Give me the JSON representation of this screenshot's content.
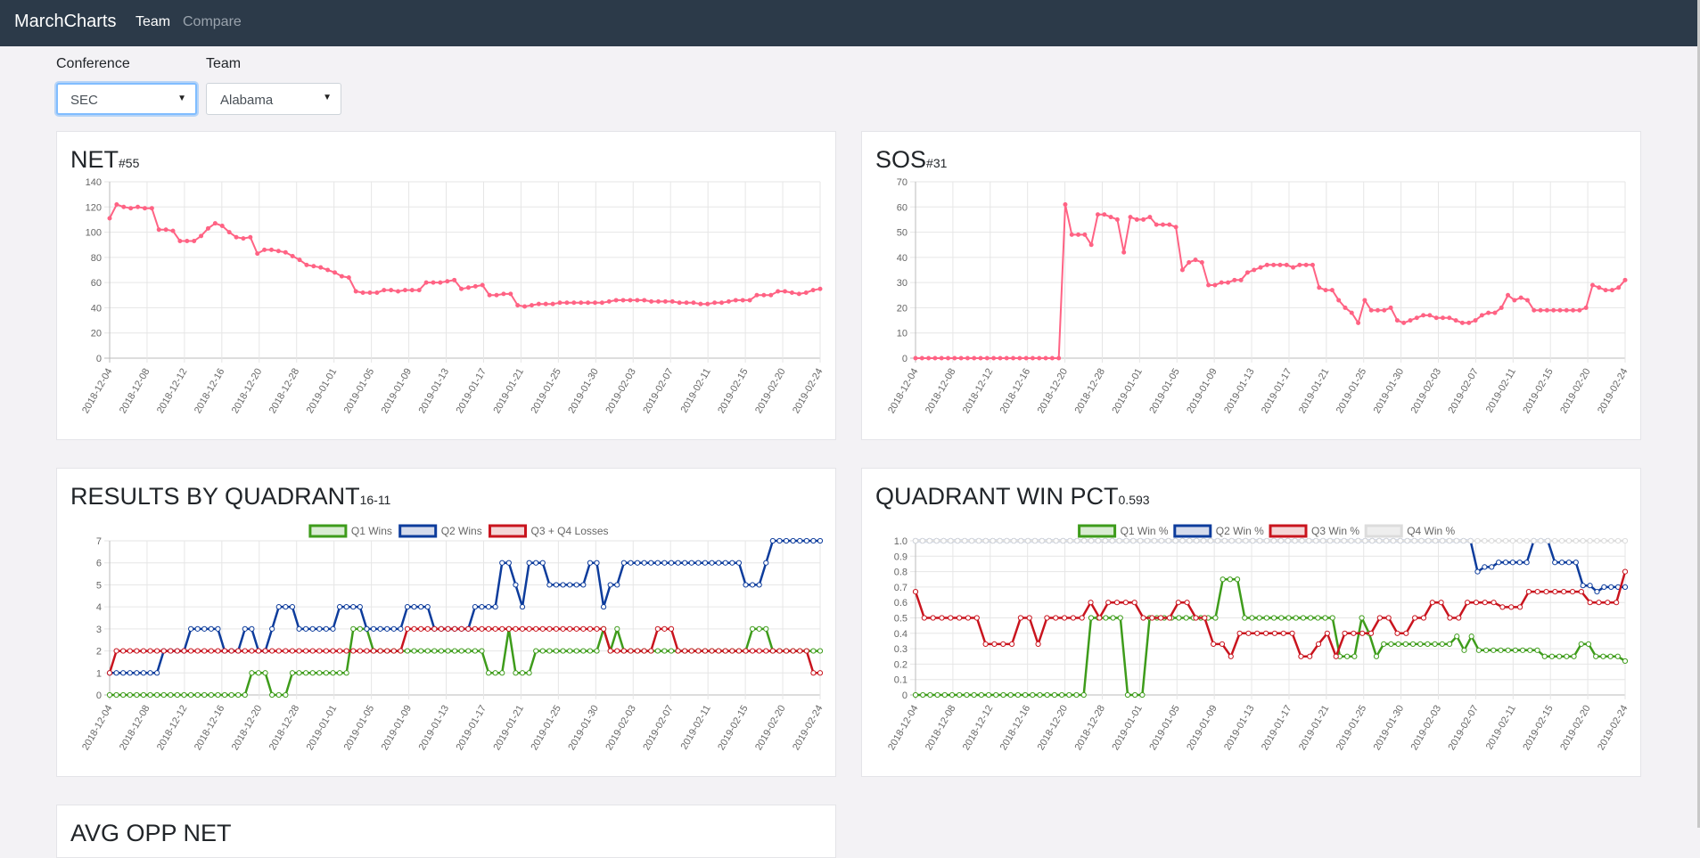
{
  "nav": {
    "brand": "MarchCharts",
    "links": [
      "Team",
      "Compare"
    ]
  },
  "filters": {
    "conference_label": "Conference",
    "conference_value": "SEC",
    "team_label": "Team",
    "team_value": "Alabama"
  },
  "next_card_title": "AVG OPP NET",
  "dates": [
    "2018-12-04",
    "2018-12-08",
    "2018-12-12",
    "2018-12-16",
    "2018-12-20",
    "2018-12-28",
    "2019-01-01",
    "2019-01-05",
    "2019-01-09",
    "2019-01-13",
    "2019-01-17",
    "2019-01-21",
    "2019-01-25",
    "2019-01-30",
    "2019-02-03",
    "2019-02-07",
    "2019-02-11",
    "2019-02-15",
    "2019-02-20",
    "2019-02-24"
  ],
  "chart_data": [
    {
      "id": "net",
      "type": "line",
      "title": "NET",
      "subtitle": "#55",
      "ylim": [
        0,
        140
      ],
      "yticks": [
        0,
        20,
        40,
        60,
        80,
        100,
        120,
        140
      ],
      "color": "#ff6384",
      "point_fill": "#ff6384",
      "series": [
        {
          "values": [
            111,
            122,
            120,
            119,
            120,
            119,
            119,
            102,
            102,
            101,
            93,
            93,
            93,
            97,
            103,
            107,
            105,
            100,
            96,
            95,
            96,
            83,
            86,
            86,
            85,
            84,
            81,
            78,
            74,
            73,
            72,
            70,
            68,
            65,
            64,
            53,
            52,
            52,
            52,
            54,
            54,
            53,
            54,
            54,
            54,
            60,
            60,
            60,
            61,
            62,
            55,
            56,
            57,
            58,
            50,
            50,
            51,
            51,
            42,
            41,
            42,
            43,
            43,
            43,
            44,
            44,
            44,
            44,
            44,
            44,
            44,
            45,
            46,
            46,
            46,
            46,
            46,
            45,
            45,
            45,
            45,
            44,
            44,
            44,
            43,
            43,
            44,
            44,
            45,
            46,
            46,
            46,
            50,
            50,
            50,
            53,
            53,
            52,
            51,
            52,
            54,
            55
          ]
        }
      ]
    },
    {
      "id": "sos",
      "type": "line",
      "title": "SOS",
      "subtitle": "#31",
      "ylim": [
        0,
        70
      ],
      "yticks": [
        0,
        10,
        20,
        30,
        40,
        50,
        60,
        70
      ],
      "color": "#ff6384",
      "point_fill": "#ff6384",
      "series": [
        {
          "values": [
            0,
            0,
            0,
            0,
            0,
            0,
            0,
            0,
            0,
            0,
            0,
            0,
            0,
            0,
            0,
            0,
            0,
            0,
            0,
            0,
            0,
            0,
            0,
            61,
            49,
            49,
            49,
            45,
            57,
            57,
            56,
            55,
            42,
            56,
            55,
            55,
            56,
            53,
            53,
            53,
            52,
            35,
            38,
            39,
            38,
            29,
            29,
            30,
            30,
            31,
            31,
            34,
            35,
            36,
            37,
            37,
            37,
            37,
            36,
            37,
            37,
            37,
            28,
            27,
            27,
            23,
            20,
            18,
            14,
            23,
            19,
            19,
            19,
            20,
            15,
            14,
            15,
            16,
            17,
            17,
            16,
            16,
            16,
            15,
            14,
            14,
            15,
            17,
            18,
            18,
            20,
            25,
            23,
            24,
            23,
            19,
            19,
            19,
            19,
            19,
            19,
            19,
            19,
            20,
            29,
            28,
            27,
            27,
            28,
            31
          ]
        }
      ]
    },
    {
      "id": "quad",
      "type": "line",
      "title": "RESULTS BY QUADRANT",
      "subtitle": "16-11",
      "ylim": [
        0,
        7
      ],
      "yticks": [
        0,
        1,
        2,
        3,
        4,
        5,
        6,
        7
      ],
      "series": [
        {
          "name": "Q1 Wins",
          "color": "#3e9c1b",
          "fill": "#d9ecd3",
          "values": [
            0,
            0,
            0,
            0,
            0,
            0,
            0,
            0,
            0,
            0,
            0,
            0,
            0,
            0,
            0,
            0,
            0,
            0,
            0,
            0,
            0,
            1,
            1,
            1,
            0,
            0,
            0,
            1,
            1,
            1,
            1,
            1,
            1,
            1,
            1,
            1,
            3,
            3,
            3,
            2,
            2,
            2,
            2,
            2,
            2,
            2,
            2,
            2,
            2,
            2,
            2,
            2,
            2,
            2,
            2,
            2,
            1,
            1,
            1,
            3,
            1,
            1,
            1,
            2,
            2,
            2,
            2,
            2,
            2,
            2,
            2,
            2,
            2,
            3,
            2,
            3,
            2,
            2,
            2,
            2,
            2,
            2,
            2,
            2,
            2,
            2,
            2,
            2,
            2,
            2,
            2,
            2,
            2,
            2,
            2,
            3,
            3,
            3,
            2,
            2,
            2,
            2,
            2,
            2,
            2,
            2
          ]
        },
        {
          "name": "Q2 Wins",
          "color": "#0d3c9c",
          "fill": "#d5dbec",
          "values": [
            1,
            1,
            1,
            1,
            1,
            1,
            1,
            1,
            2,
            2,
            2,
            2,
            3,
            3,
            3,
            3,
            3,
            2,
            2,
            2,
            3,
            3,
            2,
            2,
            3,
            4,
            4,
            4,
            3,
            3,
            3,
            3,
            3,
            3,
            4,
            4,
            4,
            4,
            3,
            3,
            3,
            3,
            3,
            3,
            4,
            4,
            4,
            4,
            3,
            3,
            3,
            3,
            3,
            3,
            4,
            4,
            4,
            4,
            6,
            6,
            5,
            4,
            6,
            6,
            6,
            5,
            5,
            5,
            5,
            5,
            5,
            6,
            6,
            4,
            5,
            5,
            6,
            6,
            6,
            6,
            6,
            6,
            6,
            6,
            6,
            6,
            6,
            6,
            6,
            6,
            6,
            6,
            6,
            6,
            5,
            5,
            5,
            6,
            7,
            7,
            7,
            7,
            7,
            7,
            7,
            7
          ]
        },
        {
          "name": "Q3 + Q4 Losses",
          "color": "#c9141e",
          "fill": "#f4d6d7",
          "values": [
            1,
            2,
            2,
            2,
            2,
            2,
            2,
            2,
            2,
            2,
            2,
            2,
            2,
            2,
            2,
            2,
            2,
            2,
            2,
            2,
            2,
            2,
            2,
            2,
            2,
            2,
            2,
            2,
            2,
            2,
            2,
            2,
            2,
            2,
            2,
            2,
            2,
            2,
            2,
            2,
            2,
            2,
            2,
            2,
            3,
            3,
            3,
            3,
            3,
            3,
            3,
            3,
            3,
            3,
            3,
            3,
            3,
            3,
            3,
            3,
            3,
            3,
            3,
            3,
            3,
            3,
            3,
            3,
            3,
            3,
            3,
            3,
            3,
            3,
            2,
            2,
            2,
            2,
            2,
            2,
            2,
            3,
            3,
            3,
            2,
            2,
            2,
            2,
            2,
            2,
            2,
            2,
            2,
            2,
            2,
            2,
            2,
            2,
            2,
            2,
            2,
            2,
            2,
            2,
            1,
            1
          ]
        }
      ]
    },
    {
      "id": "pct",
      "type": "line",
      "title": "QUADRANT WIN PCT",
      "subtitle": "0.593",
      "ylim": [
        0,
        1
      ],
      "yticks": [
        0,
        0.1,
        0.2,
        0.3,
        0.4,
        0.5,
        0.6,
        0.7,
        0.8,
        0.9,
        1.0
      ],
      "series": [
        {
          "name": "Q1 Win %",
          "color": "#3e9c1b",
          "fill": "#d9ecd3",
          "values": [
            0,
            0,
            0,
            0,
            0,
            0,
            0,
            0,
            0,
            0,
            0,
            0,
            0,
            0,
            0,
            0,
            0,
            0,
            0,
            0,
            0,
            0,
            0,
            0,
            0.5,
            0.5,
            0.5,
            0.5,
            0.5,
            0,
            0,
            0,
            0.5,
            0.5,
            0.5,
            0.5,
            0.5,
            0.5,
            0.5,
            0.5,
            0.5,
            0.5,
            0.75,
            0.75,
            0.75,
            0.5,
            0.5,
            0.5,
            0.5,
            0.5,
            0.5,
            0.5,
            0.5,
            0.5,
            0.5,
            0.5,
            0.5,
            0.5,
            0.25,
            0.25,
            0.25,
            0.5,
            0.4,
            0.25,
            0.33,
            0.33,
            0.33,
            0.33,
            0.33,
            0.33,
            0.33,
            0.33,
            0.33,
            0.33,
            0.38,
            0.29,
            0.38,
            0.29,
            0.29,
            0.29,
            0.29,
            0.29,
            0.29,
            0.29,
            0.29,
            0.29,
            0.25,
            0.25,
            0.25,
            0.25,
            0.25,
            0.33,
            0.33,
            0.25,
            0.25,
            0.25,
            0.25,
            0.22
          ]
        },
        {
          "name": "Q2 Win %",
          "color": "#0d3c9c",
          "fill": "#d5dbec",
          "values": [
            1,
            1,
            1,
            1,
            1,
            1,
            1,
            1,
            1,
            1,
            1,
            1,
            1,
            1,
            1,
            1,
            1,
            1,
            1,
            1,
            1,
            1,
            1,
            1,
            1,
            1,
            1,
            1,
            1,
            1,
            1,
            1,
            1,
            1,
            1,
            1,
            1,
            1,
            1,
            1,
            1,
            1,
            1,
            1,
            1,
            1,
            1,
            1,
            1,
            1,
            1,
            1,
            1,
            1,
            1,
            1,
            1,
            1,
            1,
            1,
            1,
            1,
            1,
            1,
            1,
            1,
            1,
            1,
            1,
            1,
            1,
            1,
            1,
            1,
            1,
            1,
            1,
            1,
            1,
            1,
            0.8,
            0.83,
            0.83,
            0.86,
            0.86,
            0.86,
            0.86,
            0.86,
            1,
            1,
            1,
            0.86,
            0.86,
            0.86,
            0.86,
            0.71,
            0.71,
            0.67,
            0.7,
            0.7,
            0.7,
            0.7
          ]
        },
        {
          "name": "Q3 Win %",
          "color": "#c9141e",
          "fill": "#f4d6d7",
          "values": [
            0.67,
            0.5,
            0.5,
            0.5,
            0.5,
            0.5,
            0.5,
            0.5,
            0.33,
            0.33,
            0.33,
            0.33,
            0.5,
            0.5,
            0.33,
            0.5,
            0.5,
            0.5,
            0.5,
            0.5,
            0.6,
            0.5,
            0.6,
            0.6,
            0.6,
            0.6,
            0.5,
            0.5,
            0.5,
            0.5,
            0.6,
            0.6,
            0.5,
            0.5,
            0.33,
            0.33,
            0.25,
            0.4,
            0.4,
            0.4,
            0.4,
            0.4,
            0.4,
            0.4,
            0.25,
            0.25,
            0.33,
            0.4,
            0.25,
            0.4,
            0.4,
            0.4,
            0.4,
            0.5,
            0.5,
            0.4,
            0.4,
            0.5,
            0.5,
            0.6,
            0.6,
            0.5,
            0.5,
            0.6,
            0.6,
            0.6,
            0.6,
            0.57,
            0.57,
            0.57,
            0.67,
            0.67,
            0.67,
            0.67,
            0.67,
            0.67,
            0.67,
            0.6,
            0.6,
            0.6,
            0.6,
            0.8
          ]
        },
        {
          "name": "Q4 Win %",
          "color": "#dcdcdc",
          "fill": "#eeeeee",
          "values": [
            1,
            1,
            1,
            1,
            1,
            1,
            1,
            1,
            1,
            1,
            1,
            1,
            1,
            1,
            1,
            1,
            1,
            1,
            1,
            1,
            1,
            1,
            1,
            1,
            1,
            1,
            1,
            1,
            1,
            1,
            1,
            1,
            1,
            1,
            1,
            1,
            1,
            1,
            1,
            1,
            1,
            1,
            1,
            1,
            1,
            1,
            1,
            1,
            1,
            1,
            1,
            1,
            1,
            1,
            1,
            1,
            1,
            1,
            1,
            1,
            1,
            1,
            1,
            1,
            1,
            1,
            1,
            1,
            1,
            1,
            1,
            1,
            1,
            1,
            1,
            1,
            1,
            1,
            1,
            1,
            1,
            1,
            1,
            1,
            1,
            1,
            1,
            1,
            1,
            1,
            1,
            1,
            1,
            1,
            1,
            1,
            1,
            1,
            1,
            1,
            1,
            1
          ]
        }
      ]
    }
  ]
}
